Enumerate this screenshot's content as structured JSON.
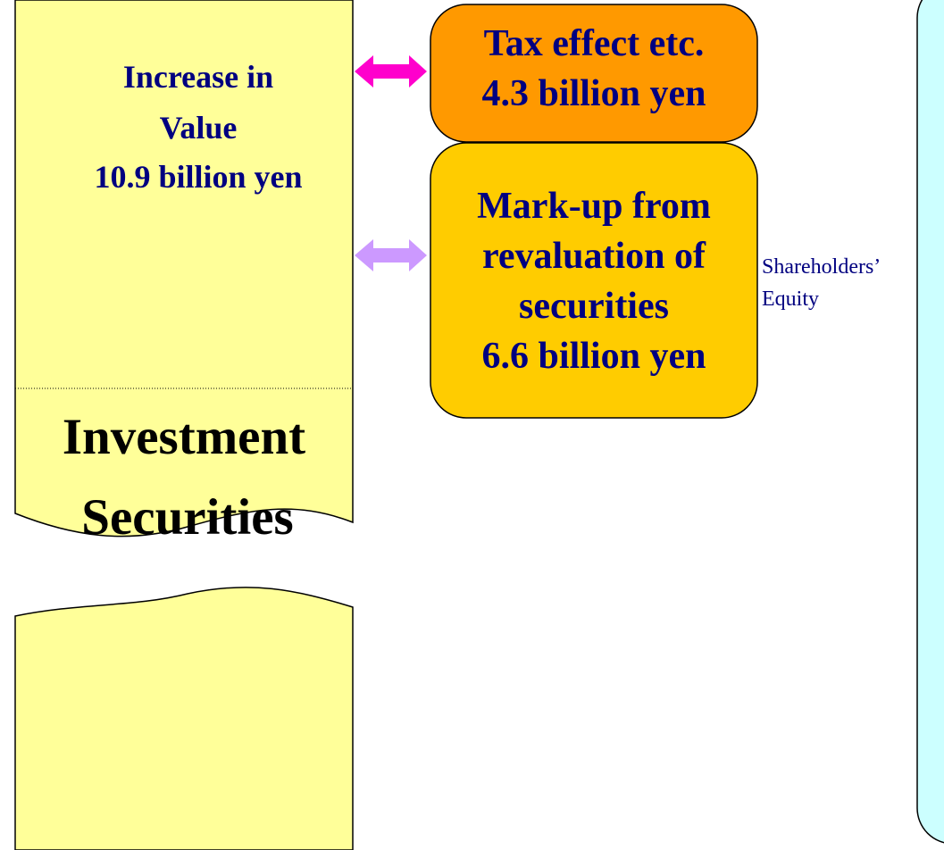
{
  "increase_in_value": {
    "lines": [
      "Increase in",
      "Value",
      "10.9 billion yen"
    ]
  },
  "investment_securities": {
    "lines": [
      "Investment",
      "Securities"
    ]
  },
  "tax_effect": {
    "lines": [
      "Tax effect etc.",
      "4.3 billion yen"
    ]
  },
  "markup": {
    "lines": [
      "Mark-up from",
      "revaluation of",
      "securities",
      "6.6 billion yen"
    ]
  },
  "shareholders_equity": {
    "lines": [
      "Shareholders’",
      "Equity"
    ]
  }
}
